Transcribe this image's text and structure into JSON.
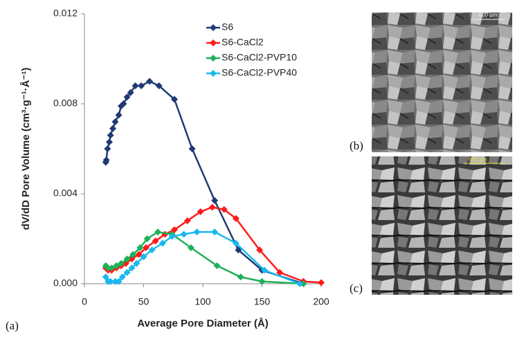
{
  "chart_data": {
    "type": "line",
    "panel_label": "(a)",
    "xlabel": "Average Pore Diameter (Å)",
    "ylabel": "dV/dD Pore Volume (cm³·g⁻¹·Å⁻¹)",
    "xlim": [
      0,
      200
    ],
    "xticks": [
      0,
      50,
      100,
      150,
      200
    ],
    "ylim": [
      0,
      0.012
    ],
    "yticks": [
      {
        "value": 0,
        "label": "0.000"
      },
      {
        "value": 0.004,
        "label": "0.004"
      },
      {
        "value": 0.008,
        "label": "0.008"
      },
      {
        "value": 0.012,
        "label": "0.012"
      }
    ],
    "legend": "top",
    "series": [
      {
        "name": "S6",
        "color": "#1f3a73",
        "x": [
          18,
          18.5,
          19.5,
          21,
          22,
          24,
          26,
          29,
          31,
          33,
          36,
          39,
          43,
          48,
          55,
          63,
          76,
          91,
          110,
          130,
          150,
          185
        ],
        "values": [
          0.0054,
          0.0055,
          0.006,
          0.0063,
          0.0066,
          0.0069,
          0.0072,
          0.0075,
          0.0079,
          0.008,
          0.0083,
          0.0085,
          0.0088,
          0.0088,
          0.009,
          0.0088,
          0.0082,
          0.006,
          0.0037,
          0.0015,
          0.0006,
          0
        ]
      },
      {
        "name": "S6-CaCl2",
        "color": "#ff1a1a",
        "x": [
          18,
          20,
          23,
          27,
          31,
          35,
          40,
          46,
          52,
          60,
          68,
          76,
          87,
          98,
          108,
          118,
          128,
          148,
          165,
          185,
          200
        ],
        "values": [
          0.0007,
          0.0006,
          0.0006,
          0.0007,
          0.0008,
          0.0009,
          0.0011,
          0.0013,
          0.0016,
          0.0019,
          0.0022,
          0.0024,
          0.0028,
          0.0032,
          0.0034,
          0.0033,
          0.0029,
          0.0015,
          0.0005,
          0.0001,
          5e-05
        ]
      },
      {
        "name": "S6-CaCl2-PVP10",
        "color": "#1fb05a",
        "x": [
          18,
          20,
          23,
          27,
          31,
          36,
          41,
          47,
          53,
          62,
          74,
          90,
          112,
          132,
          150,
          185
        ],
        "values": [
          0.0008,
          0.0007,
          0.0007,
          0.0008,
          0.0009,
          0.0011,
          0.0013,
          0.0016,
          0.002,
          0.0023,
          0.0022,
          0.0016,
          0.0008,
          0.0003,
          0.0001,
          0
        ]
      },
      {
        "name": "S6-CaCl2-PVP40",
        "color": "#1ab8ee",
        "x": [
          18,
          20,
          22,
          26,
          29,
          32,
          36,
          40,
          44,
          50,
          57,
          66,
          74,
          84,
          95,
          110,
          128,
          152,
          182
        ],
        "values": [
          0.0003,
          0.0001,
          0.0001,
          0.0001,
          0.0001,
          0.0003,
          0.0005,
          0.0007,
          0.0009,
          0.0012,
          0.0015,
          0.0018,
          0.0021,
          0.0022,
          0.0023,
          0.0023,
          0.0018,
          0.0006,
          0
        ]
      }
    ]
  },
  "images": [
    {
      "label": "(b)",
      "scale_bar": "600 µm"
    },
    {
      "label": "(c)",
      "scale_bar": "600 µm"
    }
  ]
}
